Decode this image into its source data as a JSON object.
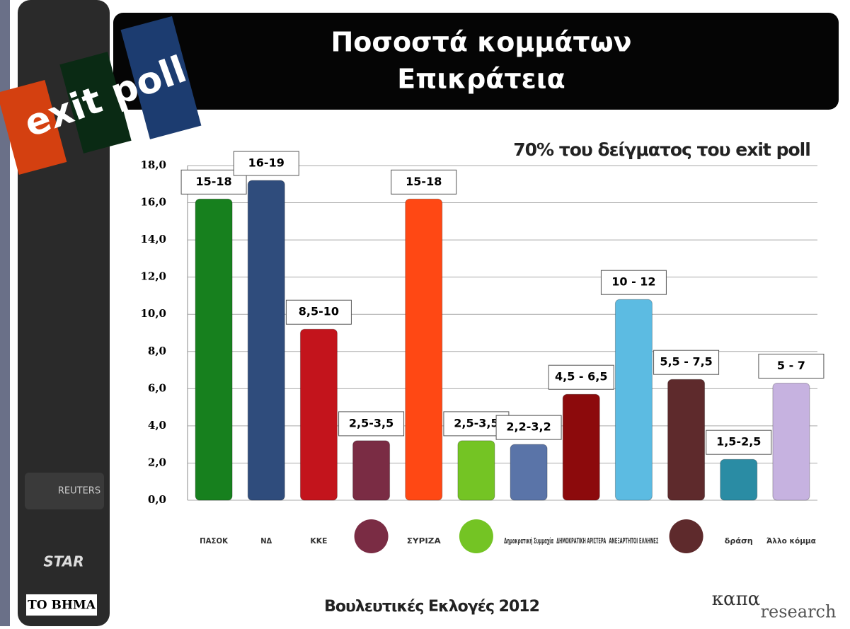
{
  "header": {
    "badge": "exit poll",
    "title_line1": "Ποσοστά κομμάτων",
    "title_line2": "Επικράτεια"
  },
  "chart_data": {
    "type": "bar",
    "subtitle": "70% του δείγματος του exit poll",
    "categories": [
      "ΠΑΣΟΚ",
      "ΝΔ",
      "ΚΚΕ",
      null,
      "ΣΥΡΙΖΑ",
      null,
      "Δημοκρατική Συμμαχία",
      "ΔΗΜΟΚΡΑΤΙΚΗ ΑΡΙΣΤΕΡΑ",
      "ΑΝΕΞΑΡΤΗΤΟΙ ΕΛΛΗΝΕΣ",
      null,
      "δράση",
      "Άλλο κόμμα"
    ],
    "values": [
      16.2,
      17.2,
      9.2,
      3.2,
      16.2,
      3.2,
      3.0,
      5.7,
      10.8,
      6.5,
      2.2,
      6.3
    ],
    "annotations": [
      "15-18",
      "16-19",
      "8,5-10",
      "2,5-3,5",
      "15-18",
      "2,5-3,5",
      "2,2-3,2",
      "4,5 - 6,5",
      "10 - 12",
      "5,5 - 7,5",
      "1,5-2,5",
      "5 - 7"
    ],
    "colors": [
      "#17801e",
      "#2f4c7c",
      "#c3141c",
      "#7a2c44",
      "#ff4814",
      "#74c424",
      "#5a74a8",
      "#8c0a0c",
      "#5cbbe2",
      "#5e2a2c",
      "#2a8ca4",
      "#c6b2e0"
    ],
    "ylim": [
      0,
      18
    ],
    "yticks": [
      {
        "value": 0,
        "label": "0,0"
      },
      {
        "value": 2,
        "label": "2,0"
      },
      {
        "value": 4,
        "label": "4,0"
      },
      {
        "value": 6,
        "label": "6,0"
      },
      {
        "value": 8,
        "label": "8,0"
      },
      {
        "value": 10,
        "label": "10,0"
      },
      {
        "value": 12,
        "label": "12,0"
      },
      {
        "value": 14,
        "label": "14,0"
      },
      {
        "value": 16,
        "label": "16,0"
      },
      {
        "value": 18,
        "label": "18,0"
      }
    ],
    "grid": true
  },
  "sidebar": {
    "reuters": "REUTERS",
    "star": "STAR",
    "vima": "ΤΟ ΒΗΜΑ"
  },
  "footer": {
    "title": "Βουλευτικές Εκλογές 2012",
    "brand1": "καπα",
    "brand2": "research"
  }
}
